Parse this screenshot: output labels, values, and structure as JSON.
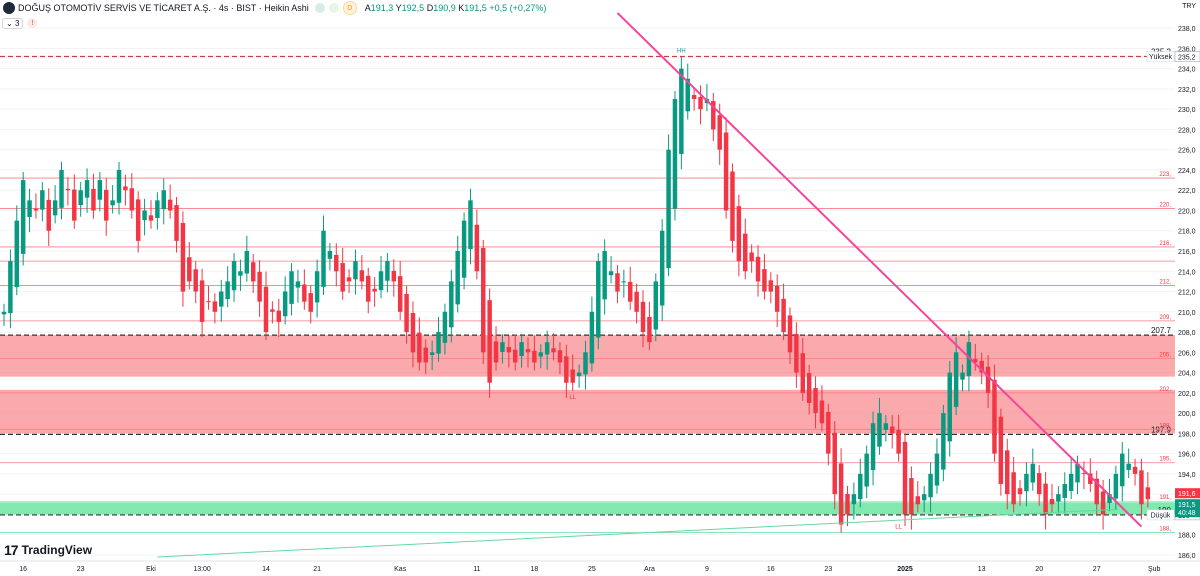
{
  "header": {
    "title": "DOĞUŞ OTOMOTİV SERVİS VE TİCARET A.Ş. · 4s · BIST · Heikin Ashi",
    "badge": "D",
    "ohlc": [
      {
        "key": "A",
        "value": "191,3"
      },
      {
        "key": "Y",
        "value": "192,5"
      },
      {
        "key": "D",
        "value": "190,9"
      },
      {
        "key": "K",
        "value": "191,5"
      },
      {
        "key": "",
        "value": "+0,5 (+0,27%)"
      }
    ],
    "indicator_count": "3",
    "currency": "TRY"
  },
  "logo": {
    "text": "TradingView",
    "mark": "17"
  },
  "colors": {
    "up": "#089981",
    "down": "#f23645",
    "trend": "#f5449b",
    "support": "#66d9a3",
    "zone_red": "#f77c80",
    "zone_green": "#3ddc84",
    "axis_text": "#131722"
  },
  "chart_data": {
    "type": "candlestick",
    "ylim": [
      185.5,
      239.0
    ],
    "y_ticks": [
      "186,0",
      "188,0",
      "190,0",
      "192,0",
      "194,0",
      "196,0",
      "198,0",
      "200,0",
      "202,0",
      "204,0",
      "206,0",
      "208,0",
      "210,0",
      "212,0",
      "214,0",
      "216,0",
      "218,0",
      "220,0",
      "222,0",
      "224,0",
      "226,0",
      "228,0",
      "230,0",
      "232,0",
      "234,0",
      "236,0",
      "238,0"
    ],
    "x_ticks": [
      {
        "label": "16",
        "i": 3
      },
      {
        "label": "23",
        "i": 12
      },
      {
        "label": "Eki",
        "i": 23
      },
      {
        "label": "13:00",
        "i": 31
      },
      {
        "label": "14",
        "i": 41
      },
      {
        "label": "21",
        "i": 49
      },
      {
        "label": "Kas",
        "i": 62
      },
      {
        "label": "11",
        "i": 74
      },
      {
        "label": "18",
        "i": 83
      },
      {
        "label": "25",
        "i": 92
      },
      {
        "label": "Ara",
        "i": 101
      },
      {
        "label": "9",
        "i": 110
      },
      {
        "label": "16",
        "i": 120
      },
      {
        "label": "23",
        "i": 129
      },
      {
        "label": "2025",
        "i": 141
      },
      {
        "label": "13",
        "i": 153
      },
      {
        "label": "20",
        "i": 162
      },
      {
        "label": "27",
        "i": 171
      },
      {
        "label": "Şub",
        "i": 180
      }
    ],
    "levels": [
      {
        "price": 235.2,
        "style": "dashed",
        "color": "#c93e3e",
        "label": "235,2",
        "tag": "Yüksek"
      },
      {
        "price": 223.2,
        "style": "solid",
        "color": "#f77c80",
        "label": "223,"
      },
      {
        "price": 220.2,
        "style": "solid",
        "color": "#f77c80",
        "label": "220,"
      },
      {
        "price": 216.4,
        "style": "solid",
        "color": "#f77c80",
        "label": "216,"
      },
      {
        "price": 215.0,
        "style": "solid",
        "color": "#f77c80",
        "label": ""
      },
      {
        "price": 212.6,
        "style": "solid",
        "color": "#f77c80",
        "label": "212,"
      },
      {
        "price": 209.1,
        "style": "solid",
        "color": "#f77c80",
        "label": "209,"
      },
      {
        "price": 207.7,
        "style": "dashed",
        "color": "#333333",
        "label": "207.7"
      },
      {
        "price": 205.4,
        "style": "solid",
        "color": "#f77c80",
        "label": "205,"
      },
      {
        "price": 202.0,
        "style": "solid",
        "color": "#f77c80",
        "label": "202,"
      },
      {
        "price": 197.9,
        "style": "dashed",
        "color": "#333333",
        "label": "197.9"
      },
      {
        "price": 198.4,
        "style": "solid",
        "color": "#f77c80",
        "label": "198,"
      },
      {
        "price": 195.1,
        "style": "solid",
        "color": "#f77c80",
        "label": "195,"
      },
      {
        "price": 191.3,
        "style": "solid",
        "color": "#a5d6b8",
        "label": "191,"
      },
      {
        "price": 189.95,
        "style": "dashed",
        "color": "#333333",
        "label": "190",
        "tag": "Düşük"
      },
      {
        "price": 188.2,
        "style": "solid",
        "color": "#66d9a3",
        "label": "188,"
      }
    ],
    "zones": [
      {
        "from": 203.6,
        "to": 207.7,
        "color": "#f77c80"
      },
      {
        "from": 198.0,
        "to": 202.3,
        "color": "#f77c80"
      },
      {
        "from": 190.0,
        "to": 191.2,
        "color": "#3ddc84"
      }
    ],
    "trendlines": [
      {
        "from": {
          "i": 96,
          "p": 239.5
        },
        "to": {
          "i": 178,
          "p": 188.8
        },
        "color": "#f5449b",
        "width": 2
      },
      {
        "from": {
          "i": 24,
          "p": 185.8
        },
        "to": {
          "i": 174,
          "p": 190.5
        },
        "color": "#66d9a3",
        "width": 1
      }
    ],
    "pivots": [
      {
        "label": "HH",
        "i": 106,
        "p": 235.6
      },
      {
        "label": "LL",
        "i": 89,
        "p": 201.4
      },
      {
        "label": "LL",
        "i": 140,
        "p": 188.6
      }
    ],
    "price_tags": [
      {
        "price": 191.6,
        "label": "191,6",
        "color": "#f23645"
      },
      {
        "price": 191.5,
        "label": "191,5",
        "sub": "40:48",
        "color": "#089981"
      }
    ],
    "closes": [
      210,
      215,
      219,
      223,
      221,
      220,
      222,
      218,
      221,
      224,
      222,
      219,
      222,
      223,
      220,
      223,
      219,
      221,
      224,
      222,
      220,
      217,
      220,
      219,
      221,
      222,
      220,
      217,
      212,
      213,
      212,
      209,
      211,
      210,
      212,
      213,
      215,
      214,
      216,
      213,
      211,
      208,
      210,
      209,
      212,
      214,
      213,
      211,
      210,
      214,
      218,
      216,
      214,
      212,
      213,
      215,
      213,
      211,
      212,
      214,
      215,
      213,
      210,
      208,
      206,
      205,
      205,
      206,
      208,
      210,
      213,
      216,
      219,
      221,
      214,
      206,
      203,
      205,
      207,
      206,
      205,
      207,
      206,
      205,
      206,
      207,
      206,
      205,
      203,
      203,
      204,
      206,
      210,
      215,
      216,
      214,
      212,
      213,
      211,
      210,
      208,
      207,
      213,
      218,
      226,
      231,
      234,
      233,
      231,
      230,
      231,
      228,
      226,
      220,
      217,
      215,
      214,
      215,
      213,
      212,
      212,
      210,
      208,
      206,
      204,
      202,
      201,
      200,
      199,
      196,
      192,
      189,
      190,
      192,
      194,
      196,
      199,
      200,
      199,
      198,
      196,
      190,
      190,
      191,
      192,
      194,
      196,
      200,
      204,
      206,
      204,
      207,
      205,
      204,
      202,
      196,
      193,
      192,
      191,
      192,
      194,
      195,
      192,
      190,
      191,
      192,
      193,
      194,
      195,
      194,
      193,
      191,
      190,
      192,
      194,
      196,
      195,
      194,
      191,
      191.5
    ]
  }
}
